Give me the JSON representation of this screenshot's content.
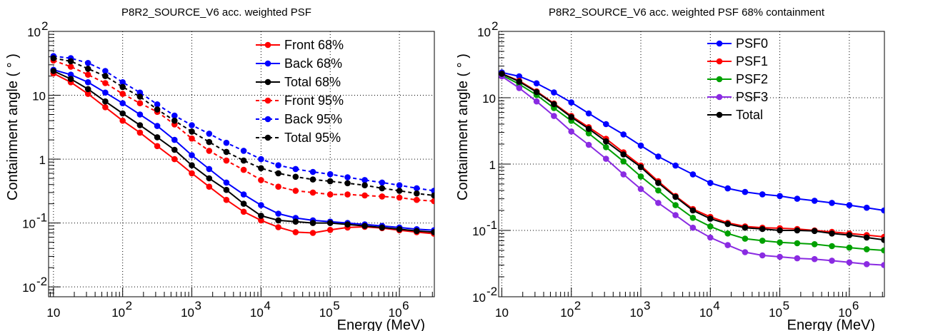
{
  "chart_data": [
    {
      "type": "line",
      "title": "P8R2_SOURCE_V6 acc. weighted PSF",
      "xlabel": "Energy (MeV)",
      "ylabel": "Containment angle ( ° )",
      "xscale": "log",
      "yscale": "log",
      "xlim": [
        8.5,
        3200000
      ],
      "ylim": [
        0.007,
        100
      ],
      "grid": true,
      "legend_position": "top-right",
      "x_ticks": [
        {
          "value": 10,
          "base": "10",
          "exp": ""
        },
        {
          "value": 100,
          "base": "10",
          "exp": "2"
        },
        {
          "value": 1000,
          "base": "10",
          "exp": "3"
        },
        {
          "value": 10000,
          "base": "10",
          "exp": "4"
        },
        {
          "value": 100000,
          "base": "10",
          "exp": "5"
        },
        {
          "value": 1000000,
          "base": "10",
          "exp": "6"
        }
      ],
      "y_ticks": [
        {
          "value": 0.01,
          "base": "10",
          "exp": "-2"
        },
        {
          "value": 0.1,
          "base": "10",
          "exp": "-1"
        },
        {
          "value": 1,
          "base": "1",
          "exp": ""
        },
        {
          "value": 10,
          "base": "10",
          "exp": ""
        },
        {
          "value": 100,
          "base": "10",
          "exp": "2"
        }
      ],
      "x": [
        10,
        17.8,
        31.6,
        56.2,
        100,
        178,
        316,
        562,
        1000,
        1780,
        3160,
        5620,
        10000,
        17800,
        31600,
        56200,
        100000,
        178000,
        316000,
        562000,
        1000000,
        1780000,
        3160000
      ],
      "series": [
        {
          "name": "Front 68%",
          "color": "#ff0000",
          "dashed": false,
          "values": [
            22,
            16,
            10.5,
            6.5,
            4.0,
            2.6,
            1.6,
            1.0,
            0.6,
            0.37,
            0.23,
            0.15,
            0.11,
            0.086,
            0.072,
            0.07,
            0.078,
            0.085,
            0.087,
            0.083,
            0.077,
            0.072,
            0.068
          ]
        },
        {
          "name": "Back 68%",
          "color": "#0000ff",
          "dashed": false,
          "values": [
            25,
            21,
            16,
            11,
            7.5,
            5.0,
            3.3,
            2.0,
            1.15,
            0.7,
            0.43,
            0.28,
            0.19,
            0.14,
            0.12,
            0.11,
            0.105,
            0.1,
            0.095,
            0.09,
            0.085,
            0.08,
            0.077
          ]
        },
        {
          "name": "Total 68%",
          "color": "#000000",
          "dashed": false,
          "values": [
            24,
            18,
            12.5,
            8.0,
            5.2,
            3.4,
            2.2,
            1.4,
            0.8,
            0.5,
            0.33,
            0.2,
            0.13,
            0.11,
            0.105,
            0.1,
            0.1,
            0.095,
            0.09,
            0.085,
            0.08,
            0.075,
            0.072
          ]
        },
        {
          "name": "Front 95%",
          "color": "#ff0000",
          "dashed": true,
          "values": [
            35,
            28,
            21,
            15.5,
            10.5,
            7.5,
            5.5,
            3.5,
            2.1,
            1.35,
            0.95,
            0.68,
            0.47,
            0.37,
            0.32,
            0.3,
            0.28,
            0.28,
            0.27,
            0.26,
            0.25,
            0.23,
            0.22
          ]
        },
        {
          "name": "Back 95%",
          "color": "#0000ff",
          "dashed": true,
          "values": [
            41,
            38,
            32,
            24,
            16,
            11,
            7.2,
            4.8,
            3.4,
            2.5,
            1.8,
            1.35,
            1.0,
            0.8,
            0.7,
            0.63,
            0.58,
            0.52,
            0.47,
            0.43,
            0.39,
            0.35,
            0.32
          ]
        },
        {
          "name": "Total 95%",
          "color": "#000000",
          "dashed": true,
          "values": [
            38,
            34,
            26,
            20,
            13.5,
            9.5,
            6.0,
            4.0,
            2.7,
            1.85,
            1.3,
            0.95,
            0.72,
            0.6,
            0.53,
            0.48,
            0.45,
            0.42,
            0.39,
            0.35,
            0.32,
            0.29,
            0.27
          ]
        }
      ]
    },
    {
      "type": "line",
      "title": "P8R2_SOURCE_V6 acc. weighted PSF 68% containment",
      "xlabel": "Energy (MeV)",
      "ylabel": "Containment angle ( ° )",
      "xscale": "log",
      "yscale": "log",
      "xlim": [
        9,
        3200000
      ],
      "ylim": [
        0.01,
        100
      ],
      "grid": true,
      "legend_position": "top-center",
      "x_ticks": [
        {
          "value": 10,
          "base": "10",
          "exp": ""
        },
        {
          "value": 100,
          "base": "10",
          "exp": "2"
        },
        {
          "value": 1000,
          "base": "10",
          "exp": "3"
        },
        {
          "value": 10000,
          "base": "10",
          "exp": "4"
        },
        {
          "value": 100000,
          "base": "10",
          "exp": "5"
        },
        {
          "value": 1000000,
          "base": "10",
          "exp": "6"
        }
      ],
      "y_ticks": [
        {
          "value": 0.01,
          "base": "10",
          "exp": "-2"
        },
        {
          "value": 0.1,
          "base": "10",
          "exp": "-1"
        },
        {
          "value": 1,
          "base": "1",
          "exp": ""
        },
        {
          "value": 10,
          "base": "10",
          "exp": ""
        },
        {
          "value": 100,
          "base": "10",
          "exp": "2"
        }
      ],
      "x": [
        10,
        17.8,
        31.6,
        56.2,
        100,
        178,
        316,
        562,
        1000,
        1780,
        3160,
        5620,
        10000,
        17800,
        31600,
        56200,
        100000,
        178000,
        316000,
        562000,
        1000000,
        1780000,
        3160000
      ],
      "series": [
        {
          "name": "PSF0",
          "color": "#0000ff",
          "dashed": false,
          "values": [
            24,
            21,
            16.5,
            12,
            8.5,
            5.8,
            4.0,
            2.8,
            1.9,
            1.3,
            0.95,
            0.7,
            0.52,
            0.43,
            0.38,
            0.35,
            0.33,
            0.3,
            0.28,
            0.26,
            0.24,
            0.22,
            0.2
          ]
        },
        {
          "name": "PSF1",
          "color": "#ff0000",
          "dashed": false,
          "values": [
            23,
            18,
            12.5,
            8.2,
            5.3,
            3.6,
            2.4,
            1.5,
            0.95,
            0.55,
            0.33,
            0.21,
            0.16,
            0.13,
            0.115,
            0.11,
            0.108,
            0.105,
            0.1,
            0.095,
            0.09,
            0.085,
            0.08
          ]
        },
        {
          "name": "PSF2",
          "color": "#00a000",
          "dashed": false,
          "values": [
            22,
            16,
            11,
            7.0,
            4.5,
            2.9,
            1.8,
            1.1,
            0.65,
            0.4,
            0.24,
            0.155,
            0.115,
            0.09,
            0.075,
            0.07,
            0.066,
            0.064,
            0.062,
            0.058,
            0.055,
            0.052,
            0.05
          ]
        },
        {
          "name": "PSF3",
          "color": "#8a2be2",
          "dashed": false,
          "values": [
            21,
            14,
            8.8,
            5.3,
            3.1,
            1.95,
            1.2,
            0.7,
            0.42,
            0.26,
            0.17,
            0.11,
            0.078,
            0.06,
            0.047,
            0.042,
            0.04,
            0.038,
            0.037,
            0.035,
            0.033,
            0.031,
            0.03
          ]
        },
        {
          "name": "Total",
          "color": "#000000",
          "dashed": false,
          "values": [
            23,
            17.5,
            12.2,
            8.0,
            5.1,
            3.4,
            2.2,
            1.4,
            0.9,
            0.52,
            0.32,
            0.2,
            0.15,
            0.125,
            0.11,
            0.105,
            0.1,
            0.1,
            0.098,
            0.09,
            0.085,
            0.078,
            0.072
          ]
        }
      ]
    }
  ]
}
